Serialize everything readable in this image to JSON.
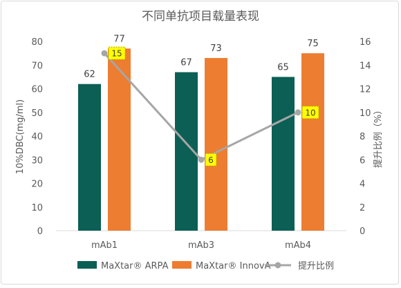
{
  "chart_data": {
    "type": "bar",
    "title": "不同单抗项目载量表现",
    "categories": [
      "mAb1",
      "mAb3",
      "mAb4"
    ],
    "series": [
      {
        "name": "MaXtar® ARPA",
        "color": "#0b5f55",
        "values": [
          62,
          67,
          65
        ],
        "axis": "left",
        "kind": "bar"
      },
      {
        "name": "MaXtar® InnovA",
        "color": "#ed7d31",
        "values": [
          77,
          73,
          75
        ],
        "axis": "left",
        "kind": "bar"
      },
      {
        "name": "提升比例",
        "color": "#a6a6a6",
        "values": [
          15,
          6,
          10
        ],
        "axis": "right",
        "kind": "line"
      }
    ],
    "ylabel": "10%DBC(mg/ml)",
    "y2label": "提升比例（%）",
    "ylim": [
      0,
      80
    ],
    "y2lim": [
      0,
      16
    ],
    "yticks": [
      "0",
      "10",
      "20",
      "30",
      "40",
      "50",
      "60",
      "70",
      "80"
    ],
    "y2ticks": [
      "0",
      "2",
      "4",
      "6",
      "8",
      "10",
      "12",
      "14",
      "16"
    ],
    "grid": false,
    "legend_position": "bottom",
    "ratio_label_style": {
      "fill": "#ffff00",
      "border": "#b8a000"
    }
  }
}
